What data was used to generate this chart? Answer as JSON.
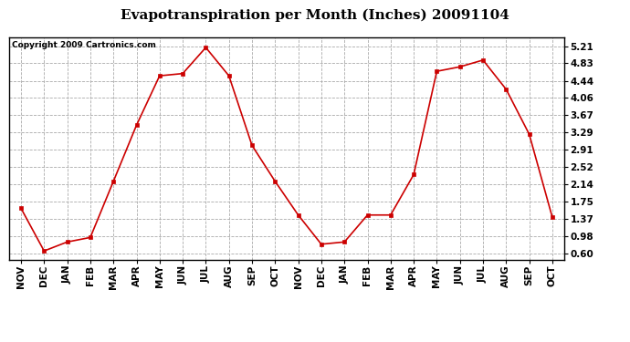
{
  "title": "Evapotranspiration per Month (Inches) 20091104",
  "copyright": "Copyright 2009 Cartronics.com",
  "months": [
    "NOV",
    "DEC",
    "JAN",
    "FEB",
    "MAR",
    "APR",
    "MAY",
    "JUN",
    "JUL",
    "AUG",
    "SEP",
    "OCT",
    "NOV",
    "DEC",
    "JAN",
    "FEB",
    "MAR",
    "APR",
    "MAY",
    "JUN",
    "JUL",
    "AUG",
    "SEP",
    "OCT"
  ],
  "values": [
    1.6,
    0.65,
    0.85,
    0.95,
    2.2,
    3.45,
    4.55,
    4.6,
    5.18,
    4.55,
    3.0,
    2.2,
    1.45,
    0.8,
    0.85,
    1.45,
    1.45,
    2.35,
    4.65,
    4.75,
    4.9,
    4.25,
    3.25,
    1.4
  ],
  "yticks": [
    0.6,
    0.98,
    1.37,
    1.75,
    2.14,
    2.52,
    2.91,
    3.29,
    3.67,
    4.06,
    4.44,
    4.83,
    5.21
  ],
  "line_color": "#cc0000",
  "marker": "s",
  "marker_color": "#cc0000",
  "marker_size": 3,
  "bg_color": "#ffffff",
  "grid_color": "#aaaaaa",
  "title_fontsize": 11,
  "copyright_fontsize": 6.5,
  "tick_fontsize": 7.5,
  "ylim": [
    0.45,
    5.4
  ]
}
